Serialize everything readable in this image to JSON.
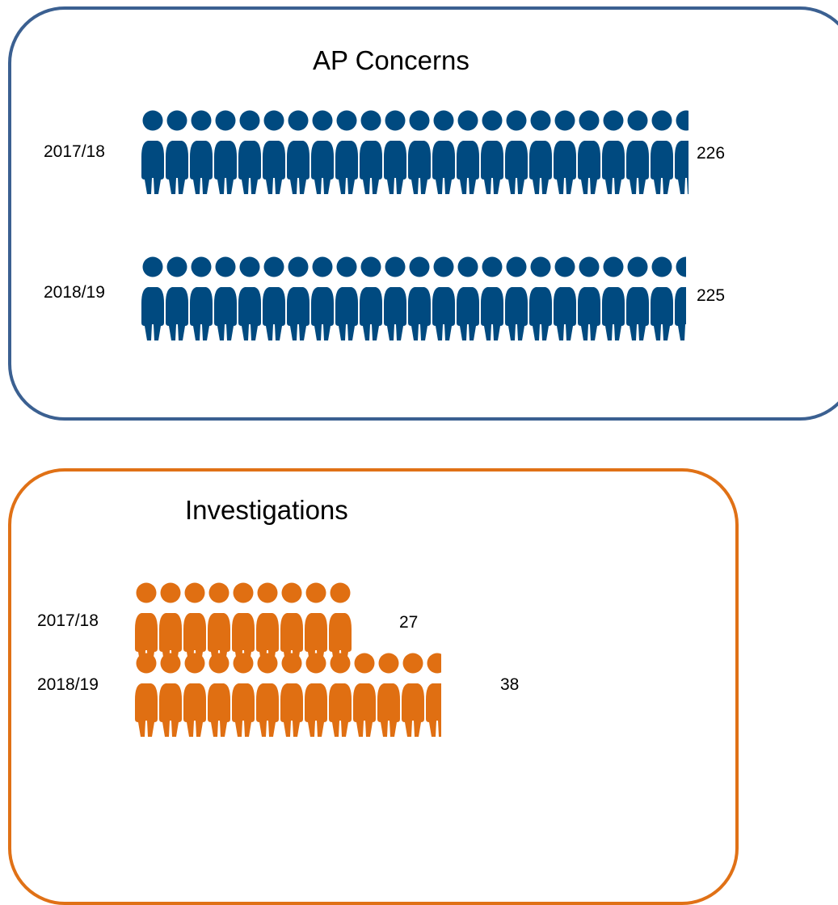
{
  "chart_data": [
    {
      "type": "bar",
      "title": "AP Concerns",
      "categories": [
        "2017/18",
        "2018/19"
      ],
      "values": [
        226,
        225
      ],
      "value_labels": [
        "226",
        "225"
      ],
      "color": "#004a80",
      "border_color": "#3b6091"
    },
    {
      "type": "bar",
      "title": "Investigations",
      "categories": [
        "2017/18",
        "2018/19"
      ],
      "values": [
        27,
        38
      ],
      "value_labels": [
        "27",
        "38"
      ],
      "color": "#e06f12",
      "border_color": "#e07116"
    }
  ],
  "icon": "person-icon"
}
